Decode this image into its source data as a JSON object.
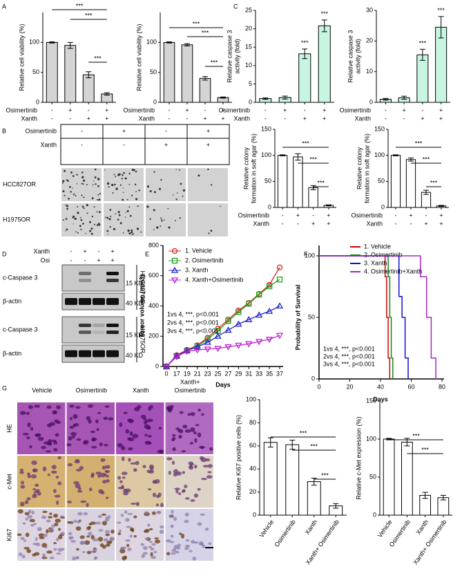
{
  "panels": [
    "A",
    "B",
    "C",
    "D",
    "E",
    "F",
    "G"
  ],
  "chart_data": [
    {
      "type": "bar",
      "ylabel": [
        "Relative cell viability (%)"
      ],
      "values": [
        100,
        95,
        46,
        14
      ],
      "errors": [
        1,
        5,
        5,
        2
      ],
      "color": "#d4d4d4",
      "ylim": [
        0,
        150
      ],
      "yticks": [
        0,
        50,
        100
      ],
      "annotations": [
        "***",
        "***",
        "***"
      ],
      "group_rows": [
        {
          "name": "Osimertinib",
          "labels": [
            "-",
            "+",
            "-",
            "+"
          ]
        },
        {
          "name": "Xanth",
          "labels": [
            "-",
            "-",
            "+",
            "+"
          ]
        }
      ]
    },
    {
      "type": "bar",
      "ylabel": [
        "Relative cell viability (%)"
      ],
      "values": [
        100,
        96,
        40,
        8
      ],
      "errors": [
        1,
        2,
        3,
        1
      ],
      "color": "#d4d4d4",
      "ylim": [
        0,
        150
      ],
      "yticks": [
        0,
        50,
        100
      ],
      "annotations": [
        "***",
        "***",
        "***"
      ],
      "group_rows": [
        {
          "name": "Osimertinib",
          "labels": [
            "-",
            "+",
            "-",
            "+"
          ]
        },
        {
          "name": "Xanth",
          "labels": [
            "-",
            "-",
            "+",
            "+"
          ]
        }
      ]
    },
    {
      "type": "bar",
      "ylabel": [
        "Relative caspase 3",
        "activity (fold)"
      ],
      "values": [
        1,
        1.3,
        13.2,
        20.8
      ],
      "errors": [
        0.2,
        0.4,
        1.3,
        1.6
      ],
      "color": "#c8f5e0",
      "ylim": [
        0,
        25
      ],
      "yticks": [
        0,
        5,
        10,
        15,
        20,
        25
      ],
      "annotations": [
        "***",
        "***"
      ],
      "group_rows": [
        {
          "name": "Osimertinib",
          "labels": [
            "-",
            "+",
            "-",
            "+"
          ]
        },
        {
          "name": "Xanth",
          "labels": [
            "-",
            "-",
            "+",
            "+"
          ]
        }
      ]
    },
    {
      "type": "bar",
      "ylabel": [
        "Relative caspase 3",
        "activity (fold)"
      ],
      "values": [
        1,
        1.5,
        15.5,
        24.5
      ],
      "errors": [
        0.3,
        0.5,
        1.8,
        3.5
      ],
      "color": "#c8f5e0",
      "ylim": [
        0,
        30
      ],
      "yticks": [
        0,
        10,
        20,
        30
      ],
      "annotations": [
        "***",
        "***"
      ],
      "group_rows": [
        {
          "name": "Osimertinib",
          "labels": [
            "-",
            "+",
            "-",
            "+"
          ]
        },
        {
          "name": "Xanth",
          "labels": [
            "-",
            "-",
            "+",
            "+"
          ]
        }
      ]
    },
    {
      "type": "bar",
      "ylabel": [
        "Relative colony",
        "formation in soft agar (%)"
      ],
      "values": [
        100,
        97,
        38,
        4
      ],
      "errors": [
        1,
        6,
        4,
        1
      ],
      "color": "#ffffff",
      "ylim": [
        0,
        150
      ],
      "yticks": [
        0,
        50,
        100,
        150
      ],
      "annotations": [
        "***",
        "***",
        "***"
      ],
      "group_rows": [
        {
          "name": "Osimertinib",
          "labels": [
            "-",
            "+",
            "-",
            "+"
          ]
        },
        {
          "name": "Xanth",
          "labels": [
            "-",
            "-",
            "+",
            "+"
          ]
        }
      ]
    },
    {
      "type": "bar",
      "ylabel": [
        "Relative colony",
        "formation in soft agar (%)"
      ],
      "values": [
        100,
        92,
        29,
        3
      ],
      "errors": [
        1,
        3,
        4,
        1
      ],
      "color": "#ffffff",
      "ylim": [
        0,
        150
      ],
      "yticks": [
        0,
        50,
        100,
        150
      ],
      "annotations": [
        "***",
        "***",
        "***"
      ],
      "group_rows": [
        {
          "name": "Osimertinib",
          "labels": [
            "-",
            "+",
            "-",
            "+"
          ]
        },
        {
          "name": "Xanth",
          "labels": [
            "-",
            "-",
            "+",
            "+"
          ]
        }
      ]
    },
    {
      "type": "line",
      "xlabel": "Days",
      "ylabel": [
        "Tumor volume (mm3)"
      ],
      "categories": [
        0,
        17,
        19,
        21,
        23,
        25,
        27,
        29,
        31,
        33,
        35,
        37
      ],
      "ylim": [
        0,
        800
      ],
      "yticks": [
        0,
        200,
        400,
        600,
        800
      ],
      "legend": "top-left",
      "annotations": [
        "1vs 4, ***, p<0.001",
        "2vs 4, ***, p<0.001",
        "3vs 4, ***, p<0.001"
      ],
      "series": [
        {
          "name": "1. Vehicle",
          "color": "#e02020",
          "marker": "circle",
          "values": [
            0,
            75,
            110,
            140,
            190,
            250,
            310,
            370,
            420,
            480,
            540,
            655
          ]
        },
        {
          "name": "2. Osimertinib",
          "color": "#22a022",
          "marker": "square",
          "values": [
            0,
            70,
            105,
            135,
            180,
            235,
            300,
            360,
            415,
            475,
            530,
            575
          ]
        },
        {
          "name": "3. Xanth",
          "color": "#2020d0",
          "marker": "triangle",
          "values": [
            0,
            70,
            105,
            130,
            160,
            200,
            240,
            280,
            310,
            340,
            365,
            400
          ]
        },
        {
          "name": "4. Xanth+Osimertinib",
          "color": "#c020d0",
          "marker": "triangle-down",
          "values": [
            0,
            65,
            100,
            110,
            115,
            120,
            130,
            140,
            150,
            165,
            180,
            205
          ]
        }
      ]
    },
    {
      "type": "step",
      "xlabel": "Days",
      "ylabel": [
        "Probability of Survival"
      ],
      "xlim": [
        0,
        80
      ],
      "xticks": [
        0,
        20,
        40,
        60,
        80
      ],
      "ylim": [
        0,
        100
      ],
      "yticks": [
        0,
        50,
        100
      ],
      "legend": "top-right",
      "annotations": [
        "1vs 4, ***, p<0.001",
        "2vs 4, ***, p<0.001",
        "3vs 4, ***, p<0.001"
      ],
      "series": [
        {
          "name": "1. Vehicle",
          "color": "#cc0000",
          "x": [
            0,
            43,
            43,
            44,
            44,
            45,
            45,
            46,
            46
          ],
          "values": [
            100,
            100,
            83,
            83,
            50,
            50,
            17,
            17,
            0
          ]
        },
        {
          "name": "2. Osimertinib",
          "color": "#118811",
          "x": [
            0,
            45,
            45,
            46,
            46,
            47,
            47,
            48,
            48
          ],
          "values": [
            100,
            100,
            83,
            83,
            50,
            50,
            17,
            17,
            0
          ]
        },
        {
          "name": "3. Xanth",
          "color": "#1010cc",
          "x": [
            0,
            52,
            52,
            54,
            54,
            56,
            56,
            58,
            58
          ],
          "values": [
            100,
            100,
            67,
            67,
            50,
            50,
            17,
            17,
            0
          ]
        },
        {
          "name": "4. Osimertinib+Xanth",
          "color": "#aa22cc",
          "x": [
            0,
            66,
            66,
            70,
            70,
            73,
            73,
            76,
            76
          ],
          "values": [
            100,
            100,
            83,
            83,
            50,
            50,
            17,
            17,
            0
          ]
        }
      ]
    },
    {
      "type": "bar",
      "ylabel": [
        "Relative Ki67 positive cells (%)"
      ],
      "categories": [
        "Vehicle",
        "Osimertinib",
        "Xanth",
        "Xanth+ Osimertinib"
      ],
      "values": [
        63,
        61,
        29,
        8
      ],
      "errors": [
        4,
        4,
        3,
        2
      ],
      "color": "#ffffff",
      "ylim": [
        0,
        100
      ],
      "yticks": [
        0,
        20,
        40,
        60,
        80,
        100
      ],
      "annotations": [
        "***",
        "***",
        "***"
      ]
    },
    {
      "type": "bar",
      "ylabel": [
        "Relative c-Met expression (%)"
      ],
      "categories": [
        "Vehicle",
        "Osimertinib",
        "Xanth",
        "Xanth+ Osimertinib"
      ],
      "values": [
        100,
        96,
        26,
        23
      ],
      "errors": [
        1,
        5,
        4,
        3
      ],
      "color": "#ffffff",
      "ylim": [
        0,
        150
      ],
      "yticks": [
        0,
        50,
        100,
        150
      ],
      "annotations": [
        "***",
        "***"
      ]
    }
  ],
  "colony_assay": {
    "rows": [
      {
        "name": "Osimertinib",
        "labels": [
          "-",
          "+",
          "-",
          "+"
        ]
      },
      {
        "name": "Xanth",
        "labels": [
          "-",
          "-",
          "+",
          "+"
        ]
      }
    ],
    "cell_lines": [
      "HCC827OR",
      "H1975OR"
    ]
  },
  "western_blot": {
    "treatments": [
      {
        "name": "Xanth",
        "labels": [
          "-",
          "+",
          "-",
          "+"
        ]
      },
      {
        "name": "Osi",
        "labels": [
          "-",
          "-",
          "+",
          "+"
        ]
      }
    ],
    "blots": [
      "c-Caspase 3",
      "β-actin",
      "c-Caspase 3",
      "β-actin"
    ],
    "markers": [
      "15 KD",
      "40 KD",
      "15 KD",
      "40 KD"
    ],
    "cell_lines": [
      "HCC827OR",
      "H1975OR"
    ]
  },
  "ihc": {
    "columns": [
      [
        "Vehicle"
      ],
      [
        "Osimertinib"
      ],
      [
        "Xanth"
      ],
      [
        "Xanth+",
        "Osimertinib"
      ]
    ],
    "rows": [
      "HE",
      "c-Met",
      "Ki67"
    ]
  }
}
